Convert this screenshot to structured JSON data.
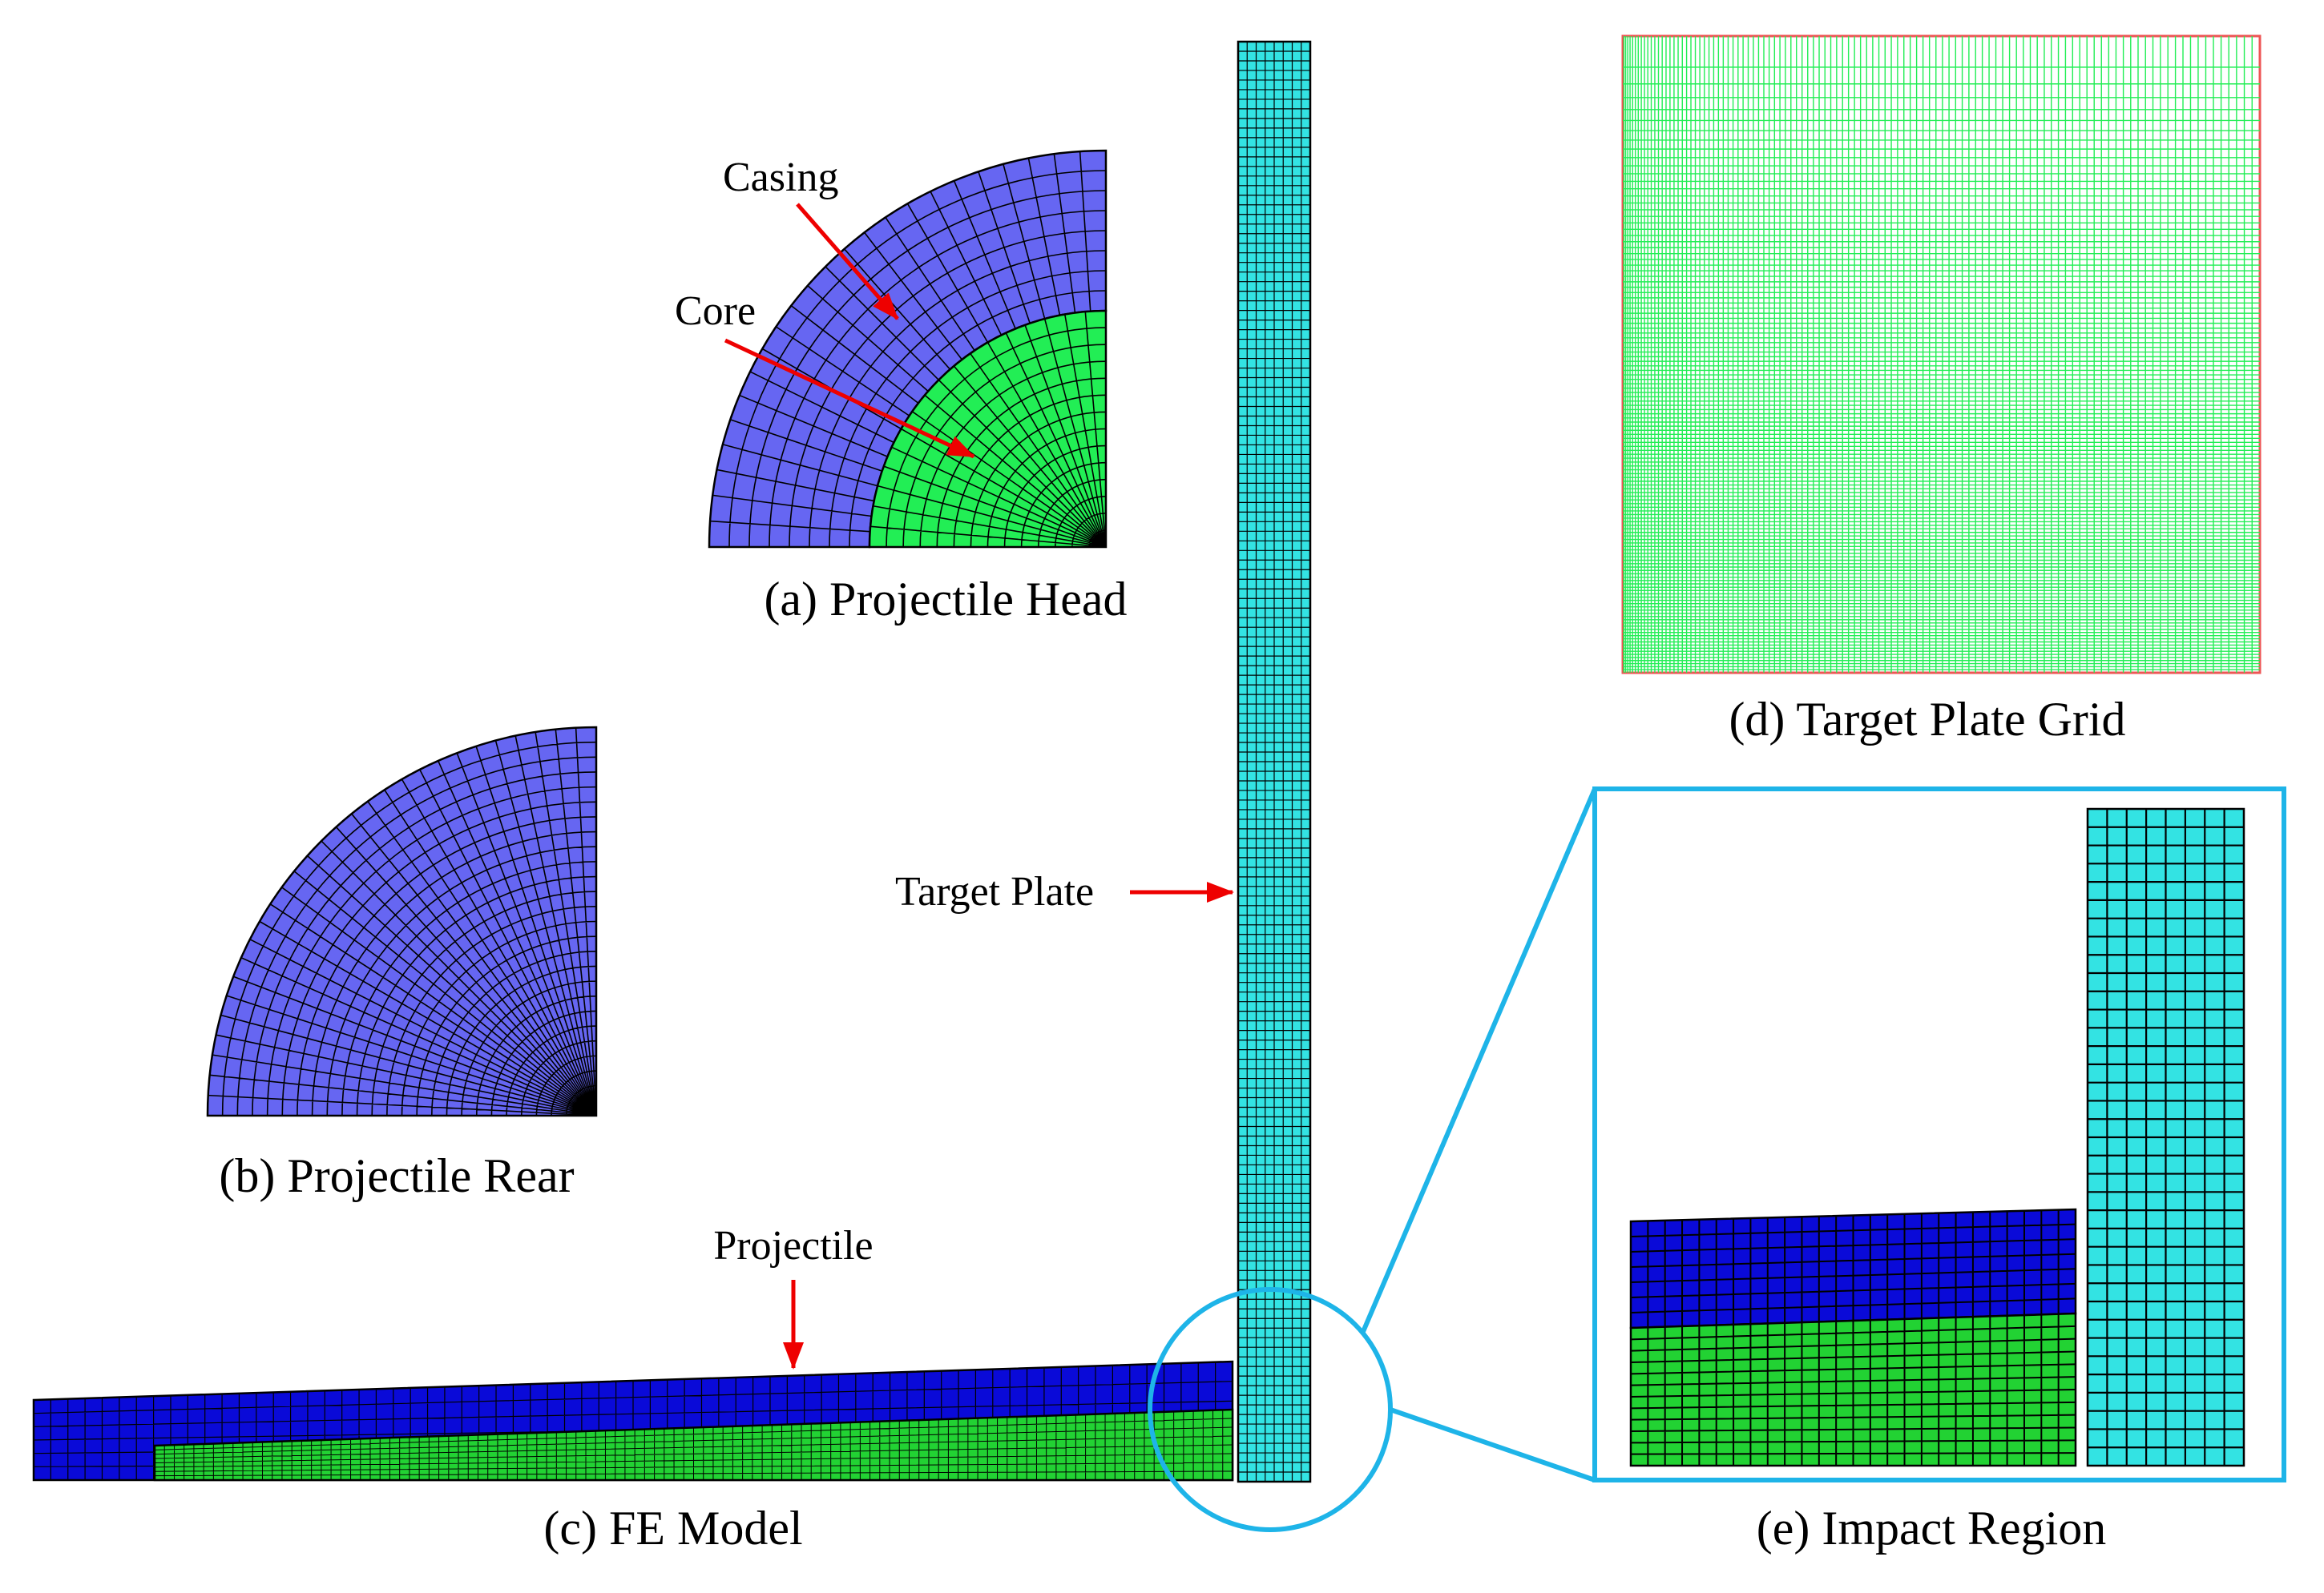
{
  "captions": {
    "a": "(a) Projectile Head",
    "b": "(b) Projectile Rear",
    "c": "(c) FE Model",
    "d": "(d) Target Plate Grid",
    "e": "(e) Impact Region"
  },
  "labels": {
    "casing": "Casing",
    "core": "Core",
    "target_plate": "Target Plate",
    "projectile": "Projectile"
  },
  "colors": {
    "casing": "#6666f2",
    "core": "#22ee55",
    "projectile_casing": "#0a0ad8",
    "projectile_core": "#22d233",
    "target_plate": "#33e3e3",
    "grid_lines": "#22ee55",
    "grid_frame": "#ee5555",
    "callout": "#1eb4e8",
    "arrow": "#ee0000",
    "mesh_line": "#000000"
  }
}
